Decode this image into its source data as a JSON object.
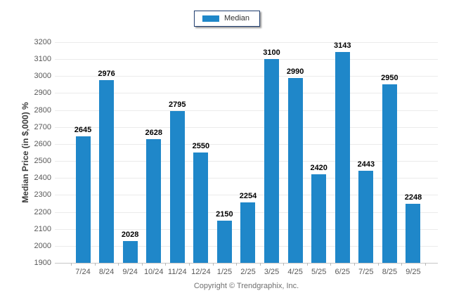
{
  "footer": {
    "copyright": "Copyright © Trendgraphix, Inc."
  },
  "chart_data": {
    "type": "bar",
    "title": "",
    "xlabel": "",
    "ylabel": "Median Price (in $,000) %",
    "categories": [
      "7/24",
      "8/24",
      "9/24",
      "10/24",
      "11/24",
      "12/24",
      "1/25",
      "2/25",
      "3/25",
      "4/25",
      "5/25",
      "6/25",
      "7/25",
      "8/25",
      "9/25"
    ],
    "series": [
      {
        "name": "Median",
        "values": [
          2645,
          2976,
          2028,
          2628,
          2795,
          2550,
          2150,
          2254,
          3100,
          2990,
          2420,
          3143,
          2443,
          2950,
          2248
        ]
      }
    ],
    "ylim": [
      1900,
      3200
    ],
    "ytick_step": 100,
    "grid": true,
    "legend_position": "top-center",
    "data_labels": true,
    "colors": {
      "bar": "#1f87c9",
      "legend_border": "#1e3c6e",
      "gridline": "#ebebeb",
      "axis_line": "#c6c6c6",
      "tick_text": "#595959",
      "data_label_text": "#000000"
    }
  }
}
